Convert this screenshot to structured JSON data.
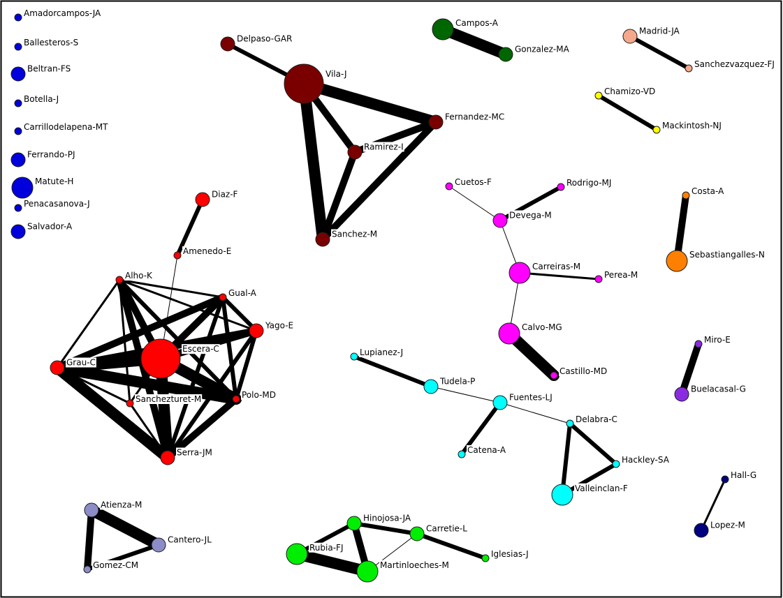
{
  "colors": {
    "edge": "#000000",
    "node_stroke": "#1a1a1a",
    "border": "#000000",
    "label": "#000000"
  },
  "nodes": [
    {
      "id": "Amadorcampos-JA",
      "label": "Amadorcampos-JA",
      "color": "#0000dd",
      "size": "small"
    },
    {
      "id": "Ballesteros-S",
      "label": "Ballesteros-S",
      "color": "#0000dd",
      "size": "small"
    },
    {
      "id": "Beltran-FS",
      "label": "Beltran-FS",
      "color": "#0000dd",
      "size": "medium"
    },
    {
      "id": "Botella-J",
      "label": "Botella-J",
      "color": "#0000dd",
      "size": "small"
    },
    {
      "id": "Carrillodelapena-MT",
      "label": "Carrillodelapena-MT",
      "color": "#0000dd",
      "size": "small"
    },
    {
      "id": "Ferrando-PJ",
      "label": "Ferrando-PJ",
      "color": "#0000dd",
      "size": "medium"
    },
    {
      "id": "Matute-H",
      "label": "Matute-H",
      "color": "#0000dd",
      "size": "large"
    },
    {
      "id": "Penacasanova-J",
      "label": "Penacasanova-J",
      "color": "#0000dd",
      "size": "small"
    },
    {
      "id": "Salvador-A",
      "label": "Salvador-A",
      "color": "#0000dd",
      "size": "medium"
    },
    {
      "id": "Delpaso-GAR",
      "label": "Delpaso-GAR",
      "color": "#7a0000",
      "size": "medium"
    },
    {
      "id": "Vila-J",
      "label": "Vila-J",
      "color": "#7a0000",
      "size": "huge"
    },
    {
      "id": "Fernandez-MC",
      "label": "Fernandez-MC",
      "color": "#7a0000",
      "size": "medium"
    },
    {
      "id": "Ramirez-I",
      "label": "Ramirez-I",
      "color": "#7a0000",
      "size": "medium"
    },
    {
      "id": "Sanchez-M",
      "label": "Sanchez-M",
      "color": "#7a0000",
      "size": "medium"
    },
    {
      "id": "Campos-A",
      "label": "Campos-A",
      "color": "#006600",
      "size": "large"
    },
    {
      "id": "Gonzalez-MA",
      "label": "Gonzalez-MA",
      "color": "#006600",
      "size": "medium"
    },
    {
      "id": "Madrid-JA",
      "label": "Madrid-JA",
      "color": "#f4a98c",
      "size": "medium"
    },
    {
      "id": "Sanchezvazquez-FJ",
      "label": "Sanchezvazquez-FJ",
      "color": "#f4a98c",
      "size": "small"
    },
    {
      "id": "Chamizo-VD",
      "label": "Chamizo-VD",
      "color": "#ffff00",
      "size": "small"
    },
    {
      "id": "Mackintosh-NJ",
      "label": "Mackintosh-NJ",
      "color": "#ffff00",
      "size": "small"
    },
    {
      "id": "Diaz-F",
      "label": "Diaz-F",
      "color": "#ff0000",
      "size": "medium"
    },
    {
      "id": "Amenedo-E",
      "label": "Amenedo-E",
      "color": "#ff0000",
      "size": "small"
    },
    {
      "id": "Alho-K",
      "label": "Alho-K",
      "color": "#ff0000",
      "size": "small"
    },
    {
      "id": "Gual-A",
      "label": "Gual-A",
      "color": "#ff0000",
      "size": "small"
    },
    {
      "id": "Yago-E",
      "label": "Yago-E",
      "color": "#ff0000",
      "size": "medium"
    },
    {
      "id": "Escera-C",
      "label": "Escera-C",
      "color": "#ff0000",
      "size": "huge"
    },
    {
      "id": "Grau-C",
      "label": "Grau-C",
      "color": "#ff0000",
      "size": "medium"
    },
    {
      "id": "Sanchezturet-M",
      "label": "Sanchezturet-M",
      "color": "#ff0000",
      "size": "small"
    },
    {
      "id": "Polo-MD",
      "label": "Polo-MD",
      "color": "#ff0000",
      "size": "small"
    },
    {
      "id": "Serra-JM",
      "label": "Serra-JM",
      "color": "#ff0000",
      "size": "medium"
    },
    {
      "id": "Cuetos-F",
      "label": "Cuetos-F",
      "color": "#ff00ff",
      "size": "small"
    },
    {
      "id": "Rodrigo-MJ",
      "label": "Rodrigo-MJ",
      "color": "#ff00ff",
      "size": "small"
    },
    {
      "id": "Devega-M",
      "label": "Devega-M",
      "color": "#ff00ff",
      "size": "medium"
    },
    {
      "id": "Carreiras-M",
      "label": "Carreiras-M",
      "color": "#ff00ff",
      "size": "large"
    },
    {
      "id": "Perea-M",
      "label": "Perea-M",
      "color": "#ff00ff",
      "size": "small"
    },
    {
      "id": "Calvo-MG",
      "label": "Calvo-MG",
      "color": "#ff00ff",
      "size": "large"
    },
    {
      "id": "Castillo-MD",
      "label": "Castillo-MD",
      "color": "#ff00ff",
      "size": "small"
    },
    {
      "id": "Costa-A",
      "label": "Costa-A",
      "color": "#ff8000",
      "size": "small"
    },
    {
      "id": "Sebastiangalles-N",
      "label": "Sebastiangalles-N",
      "color": "#ff8000",
      "size": "large"
    },
    {
      "id": "Miro-E",
      "label": "Miro-E",
      "color": "#8a2be2",
      "size": "small"
    },
    {
      "id": "Buelacasal-G",
      "label": "Buelacasal-G",
      "color": "#8a2be2",
      "size": "medium"
    },
    {
      "id": "Lupianez-J",
      "label": "Lupianez-J",
      "color": "#00ffff",
      "size": "small"
    },
    {
      "id": "Tudela-P",
      "label": "Tudela-P",
      "color": "#00ffff",
      "size": "medium"
    },
    {
      "id": "Fuentes-LJ",
      "label": "Fuentes-LJ",
      "color": "#00ffff",
      "size": "medium"
    },
    {
      "id": "Catena-A",
      "label": "Catena-A",
      "color": "#00ffff",
      "size": "small"
    },
    {
      "id": "Delabra-C",
      "label": "Delabra-C",
      "color": "#00ffff",
      "size": "small"
    },
    {
      "id": "Hackley-SA",
      "label": "Hackley-SA",
      "color": "#00ffff",
      "size": "small"
    },
    {
      "id": "Valleinclan-F",
      "label": "Valleinclan-F",
      "color": "#00ffff",
      "size": "large"
    },
    {
      "id": "Hall-G",
      "label": "Hall-G",
      "color": "#000080",
      "size": "small"
    },
    {
      "id": "Lopez-M",
      "label": "Lopez-M",
      "color": "#000080",
      "size": "medium"
    },
    {
      "id": "Atienza-M",
      "label": "Atienza-M",
      "color": "#8c8cc8",
      "size": "medium"
    },
    {
      "id": "Cantero-JL",
      "label": "Cantero-JL",
      "color": "#8c8cc8",
      "size": "medium"
    },
    {
      "id": "Gomez-CM",
      "label": "Gomez-CM",
      "color": "#8c8cc8",
      "size": "small"
    },
    {
      "id": "Hinojosa-JA",
      "label": "Hinojosa-JA",
      "color": "#00ee00",
      "size": "medium"
    },
    {
      "id": "Carretie-L",
      "label": "Carretie-L",
      "color": "#00ee00",
      "size": "medium"
    },
    {
      "id": "Rubia-FJ",
      "label": "Rubia-FJ",
      "color": "#00ee00",
      "size": "large"
    },
    {
      "id": "Martinloeches-M",
      "label": "Martinloeches-M",
      "color": "#00ee00",
      "size": "large"
    },
    {
      "id": "Iglesias-J",
      "label": "Iglesias-J",
      "color": "#00ee00",
      "size": "small"
    }
  ],
  "edges": [
    {
      "source": "Delpaso-GAR",
      "target": "Vila-J",
      "weight": "medium"
    },
    {
      "source": "Vila-J",
      "target": "Fernandez-MC",
      "weight": "very-heavy"
    },
    {
      "source": "Vila-J",
      "target": "Ramirez-I",
      "weight": "heavy"
    },
    {
      "source": "Vila-J",
      "target": "Sanchez-M",
      "weight": "very-heavy"
    },
    {
      "source": "Fernandez-MC",
      "target": "Ramirez-I",
      "weight": "heavy"
    },
    {
      "source": "Fernandez-MC",
      "target": "Sanchez-M",
      "weight": "heavy"
    },
    {
      "source": "Ramirez-I",
      "target": "Sanchez-M",
      "weight": "heavy"
    },
    {
      "source": "Campos-A",
      "target": "Gonzalez-MA",
      "weight": "very-heavy"
    },
    {
      "source": "Madrid-JA",
      "target": "Sanchezvazquez-FJ",
      "weight": "medium"
    },
    {
      "source": "Chamizo-VD",
      "target": "Mackintosh-NJ",
      "weight": "medium"
    },
    {
      "source": "Diaz-F",
      "target": "Amenedo-E",
      "weight": "medium"
    },
    {
      "source": "Amenedo-E",
      "target": "Escera-C",
      "weight": "thin"
    },
    {
      "source": "Alho-K",
      "target": "Gual-A",
      "weight": "light"
    },
    {
      "source": "Alho-K",
      "target": "Grau-C",
      "weight": "light"
    },
    {
      "source": "Alho-K",
      "target": "Escera-C",
      "weight": "heavy"
    },
    {
      "source": "Alho-K",
      "target": "Serra-JM",
      "weight": "heavy"
    },
    {
      "source": "Alho-K",
      "target": "Polo-MD",
      "weight": "medium"
    },
    {
      "source": "Alho-K",
      "target": "Yago-E",
      "weight": "light"
    },
    {
      "source": "Alho-K",
      "target": "Sanchezturet-M",
      "weight": "light"
    },
    {
      "source": "Gual-A",
      "target": "Yago-E",
      "weight": "medium"
    },
    {
      "source": "Gual-A",
      "target": "Escera-C",
      "weight": "heavy"
    },
    {
      "source": "Gual-A",
      "target": "Grau-C",
      "weight": "heavy"
    },
    {
      "source": "Gual-A",
      "target": "Polo-MD",
      "weight": "medium"
    },
    {
      "source": "Gual-A",
      "target": "Serra-JM",
      "weight": "medium"
    },
    {
      "source": "Yago-E",
      "target": "Escera-C",
      "weight": "heavy"
    },
    {
      "source": "Yago-E",
      "target": "Grau-C",
      "weight": "heavy"
    },
    {
      "source": "Yago-E",
      "target": "Polo-MD",
      "weight": "medium"
    },
    {
      "source": "Yago-E",
      "target": "Serra-JM",
      "weight": "medium"
    },
    {
      "source": "Escera-C",
      "target": "Grau-C",
      "weight": "very-heavy"
    },
    {
      "source": "Escera-C",
      "target": "Polo-MD",
      "weight": "very-heavy"
    },
    {
      "source": "Escera-C",
      "target": "Serra-JM",
      "weight": "very-heavy"
    },
    {
      "source": "Escera-C",
      "target": "Sanchezturet-M",
      "weight": "light"
    },
    {
      "source": "Grau-C",
      "target": "Polo-MD",
      "weight": "very-heavy"
    },
    {
      "source": "Grau-C",
      "target": "Serra-JM",
      "weight": "very-heavy"
    },
    {
      "source": "Grau-C",
      "target": "Sanchezturet-M",
      "weight": "light"
    },
    {
      "source": "Polo-MD",
      "target": "Serra-JM",
      "weight": "heavy"
    },
    {
      "source": "Sanchezturet-M",
      "target": "Serra-JM",
      "weight": "light"
    },
    {
      "source": "Cuetos-F",
      "target": "Devega-M",
      "weight": "thin"
    },
    {
      "source": "Rodrigo-MJ",
      "target": "Devega-M",
      "weight": "medium"
    },
    {
      "source": "Devega-M",
      "target": "Carreiras-M",
      "weight": "thin"
    },
    {
      "source": "Carreiras-M",
      "target": "Perea-M",
      "weight": "light"
    },
    {
      "source": "Carreiras-M",
      "target": "Calvo-MG",
      "weight": "thin"
    },
    {
      "source": "Calvo-MG",
      "target": "Castillo-MD",
      "weight": "very-heavy"
    },
    {
      "source": "Costa-A",
      "target": "Sebastiangalles-N",
      "weight": "heavy"
    },
    {
      "source": "Miro-E",
      "target": "Buelacasal-G",
      "weight": "heavy"
    },
    {
      "source": "Lupianez-J",
      "target": "Tudela-P",
      "weight": "medium"
    },
    {
      "source": "Tudela-P",
      "target": "Fuentes-LJ",
      "weight": "thin"
    },
    {
      "source": "Fuentes-LJ",
      "target": "Catena-A",
      "weight": "medium"
    },
    {
      "source": "Fuentes-LJ",
      "target": "Delabra-C",
      "weight": "thin"
    },
    {
      "source": "Delabra-C",
      "target": "Hackley-SA",
      "weight": "medium"
    },
    {
      "source": "Delabra-C",
      "target": "Valleinclan-F",
      "weight": "medium"
    },
    {
      "source": "Hackley-SA",
      "target": "Valleinclan-F",
      "weight": "medium"
    },
    {
      "source": "Hall-G",
      "target": "Lopez-M",
      "weight": "light"
    },
    {
      "source": "Atienza-M",
      "target": "Cantero-JL",
      "weight": "very-heavy"
    },
    {
      "source": "Atienza-M",
      "target": "Gomez-CM",
      "weight": "heavy"
    },
    {
      "source": "Cantero-JL",
      "target": "Gomez-CM",
      "weight": "medium"
    },
    {
      "source": "Hinojosa-JA",
      "target": "Carretie-L",
      "weight": "medium"
    },
    {
      "source": "Hinojosa-JA",
      "target": "Rubia-FJ",
      "weight": "medium"
    },
    {
      "source": "Hinojosa-JA",
      "target": "Martinloeches-M",
      "weight": "heavy"
    },
    {
      "source": "Rubia-FJ",
      "target": "Martinloeches-M",
      "weight": "very-heavy"
    },
    {
      "source": "Carretie-L",
      "target": "Martinloeches-M",
      "weight": "thin"
    },
    {
      "source": "Carretie-L",
      "target": "Iglesias-J",
      "weight": "medium"
    }
  ]
}
